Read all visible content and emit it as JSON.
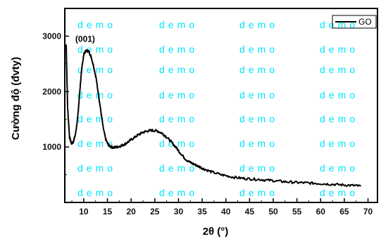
{
  "chart_data": {
    "type": "line",
    "xlabel": "2θ (°)",
    "ylabel": "Cường độ (đvty)",
    "xlim": [
      6,
      72
    ],
    "ylim": [
      0,
      3500
    ],
    "x_ticks": [
      10,
      15,
      20,
      25,
      30,
      35,
      40,
      45,
      50,
      55,
      60,
      65,
      70
    ],
    "y_ticks": [
      1000,
      2000,
      3000
    ],
    "grid": false,
    "legend_position": "top-right",
    "series": [
      {
        "name": "GO",
        "color": "#000000",
        "points": [
          [
            6.3,
            2850
          ],
          [
            6.6,
            1700
          ],
          [
            7.0,
            1180
          ],
          [
            7.4,
            1060
          ],
          [
            7.8,
            1090
          ],
          [
            8.3,
            1250
          ],
          [
            8.8,
            1600
          ],
          [
            9.3,
            2150
          ],
          [
            9.7,
            2500
          ],
          [
            10.1,
            2700
          ],
          [
            10.6,
            2740
          ],
          [
            11.1,
            2720
          ],
          [
            11.6,
            2620
          ],
          [
            12.1,
            2450
          ],
          [
            12.6,
            2250
          ],
          [
            13.1,
            1950
          ],
          [
            13.6,
            1650
          ],
          [
            14.1,
            1350
          ],
          [
            14.6,
            1150
          ],
          [
            15.1,
            1050
          ],
          [
            15.6,
            1010
          ],
          [
            16.3,
            990
          ],
          [
            17.0,
            1000
          ],
          [
            17.8,
            1020
          ],
          [
            18.6,
            1050
          ],
          [
            19.5,
            1100
          ],
          [
            20.5,
            1160
          ],
          [
            21.5,
            1220
          ],
          [
            22.5,
            1265
          ],
          [
            23.5,
            1290
          ],
          [
            24.5,
            1300
          ],
          [
            25.5,
            1290
          ],
          [
            26.5,
            1250
          ],
          [
            27.5,
            1180
          ],
          [
            28.5,
            1090
          ],
          [
            29.5,
            990
          ],
          [
            30.5,
            880
          ],
          [
            31.5,
            780
          ],
          [
            32.5,
            720
          ],
          [
            33.5,
            680
          ],
          [
            34.5,
            640
          ],
          [
            35.5,
            600
          ],
          [
            37.0,
            550
          ],
          [
            39.0,
            500
          ],
          [
            41.0,
            465
          ],
          [
            43.0,
            440
          ],
          [
            45.0,
            425
          ],
          [
            47.0,
            415
          ],
          [
            49.0,
            400
          ],
          [
            51.0,
            385
          ],
          [
            53.0,
            370
          ],
          [
            55.0,
            360
          ],
          [
            57.0,
            352
          ],
          [
            59.0,
            345
          ],
          [
            61.0,
            335
          ],
          [
            63.0,
            325
          ],
          [
            65.0,
            315
          ],
          [
            67.0,
            305
          ],
          [
            68.5,
            295
          ]
        ]
      }
    ],
    "annotations": [
      {
        "text": "(001)",
        "x": 10.3,
        "y": 2900
      }
    ]
  },
  "watermark": {
    "text": "demo"
  }
}
